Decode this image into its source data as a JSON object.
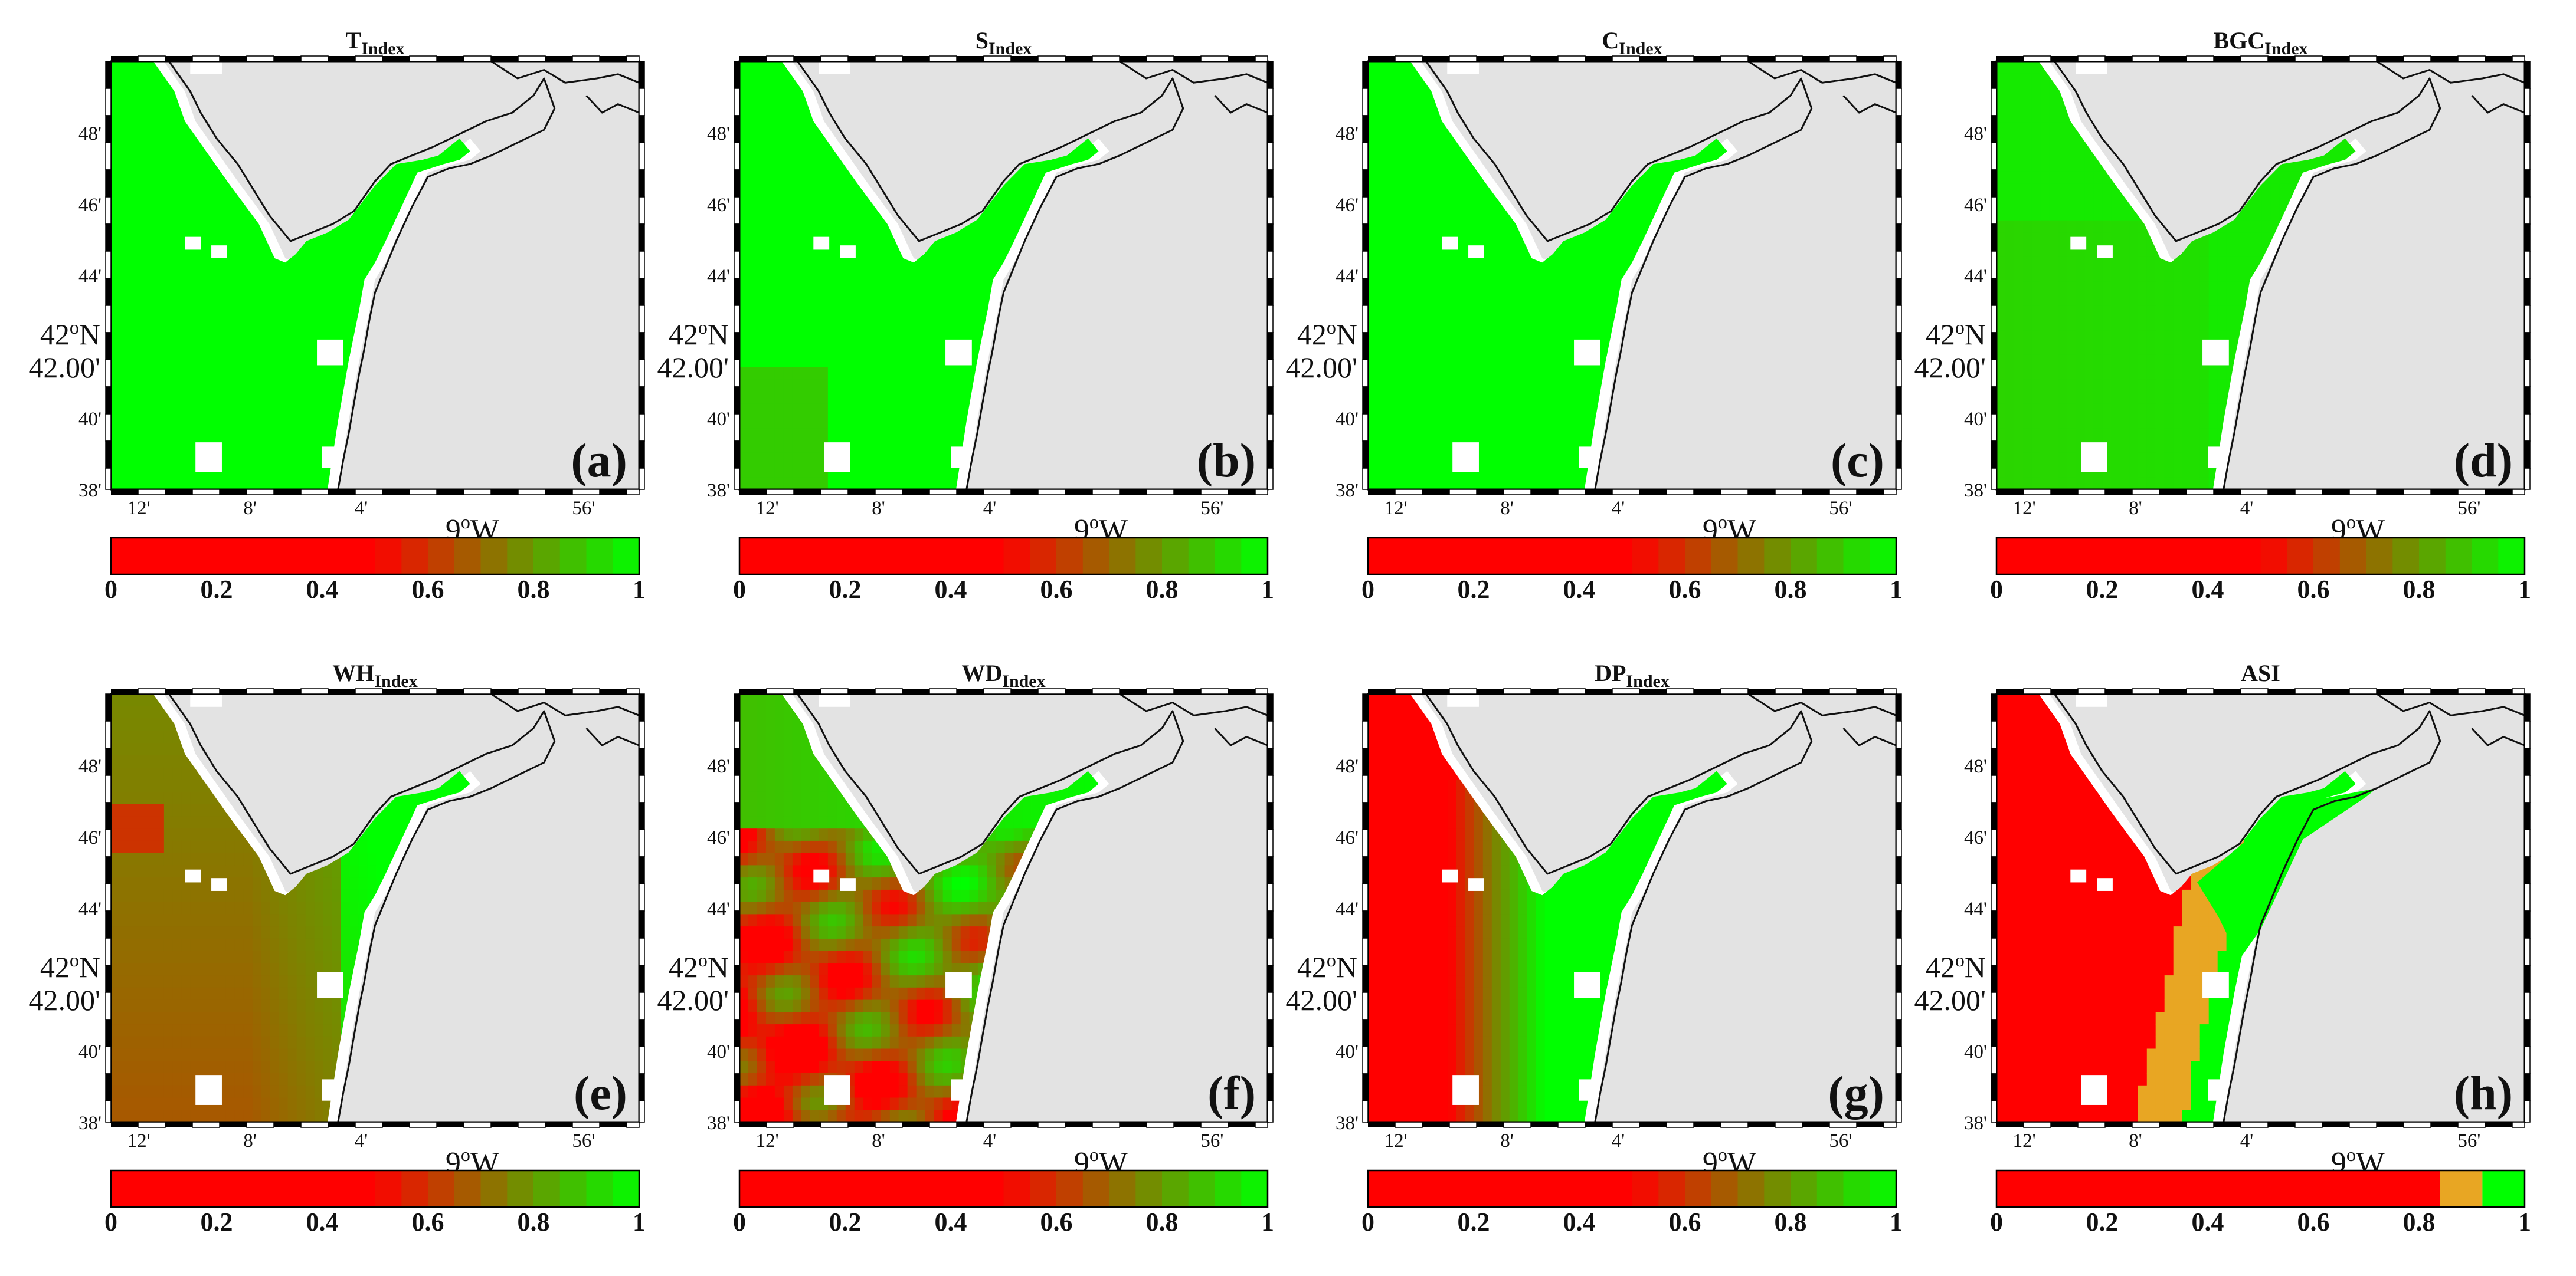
{
  "panels": [
    {
      "id": "a",
      "title_main": "T",
      "title_sub": "Index",
      "label": "(a)",
      "field": "green",
      "colorbar": "gradient"
    },
    {
      "id": "b",
      "title_main": "S",
      "title_sub": "Index",
      "label": "(b)",
      "field": "green-sw",
      "colorbar": "gradient"
    },
    {
      "id": "c",
      "title_main": "C",
      "title_sub": "Index",
      "label": "(c)",
      "field": "green",
      "colorbar": "gradient"
    },
    {
      "id": "d",
      "title_main": "BGC",
      "title_sub": "Index",
      "label": "(d)",
      "field": "green-dark",
      "colorbar": "gradient"
    },
    {
      "id": "e",
      "title_main": "WH",
      "title_sub": "Index",
      "label": "(e)",
      "field": "olive",
      "colorbar": "gradient"
    },
    {
      "id": "f",
      "title_main": "WD",
      "title_sub": "Index",
      "label": "(f)",
      "field": "mottled",
      "colorbar": "gradient"
    },
    {
      "id": "g",
      "title_main": "DP",
      "title_sub": "Index",
      "label": "(g)",
      "field": "red-west",
      "colorbar": "gradient"
    },
    {
      "id": "h",
      "title_main": "ASI",
      "title_sub": "",
      "label": "(h)",
      "field": "asi",
      "colorbar": "asi"
    }
  ],
  "axes": {
    "y_ticks": [
      "48'",
      "46'",
      "44'",
      "42.00'",
      "40'",
      "38'"
    ],
    "y_tick_values": [
      48,
      46,
      44,
      42,
      40,
      38
    ],
    "x_ticks": [
      "12'",
      "8'",
      "4'",
      "56'"
    ],
    "x_tick_values": [
      -12,
      -8,
      -4,
      4
    ],
    "lat_label_main": "42",
    "lat_label_sup": "o",
    "lat_label_suffix": "N",
    "lon_label_main": "9",
    "lon_label_sup": "o",
    "lon_label_suffix": "W",
    "lat_range": [
      38,
      50
    ],
    "lon_range": [
      -13,
      6
    ]
  },
  "colorbar": {
    "ticks": [
      "0",
      "0.2",
      "0.4",
      "0.6",
      "0.8",
      "1"
    ],
    "tick_values": [
      0,
      0.2,
      0.4,
      0.6,
      0.8,
      1
    ]
  },
  "colors": {
    "land": "#e3e3e3",
    "ocean_white": "#ffffff",
    "low_index": "#ff0000",
    "mid_index": "#808000",
    "high_index": "#00ff00",
    "asi_mid": "#e8a623"
  }
}
